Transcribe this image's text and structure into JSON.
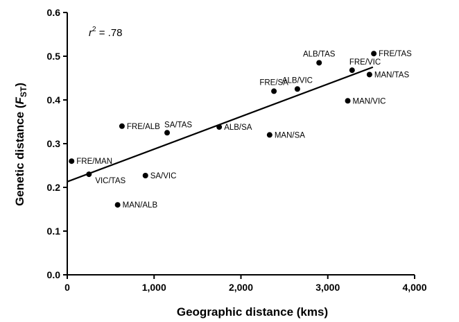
{
  "chart_data": {
    "type": "scatter",
    "title": "",
    "xlabel": "Geographic distance (kms)",
    "ylabel_main": "Genetic distance (",
    "ylabel_italic": "F",
    "ylabel_sub": "ST",
    "ylabel_close": ")",
    "xlim": [
      0,
      4000
    ],
    "ylim": [
      0,
      0.6
    ],
    "x_ticks": [
      0,
      1000,
      2000,
      3000,
      4000
    ],
    "x_tick_labels": [
      "0",
      "1,000",
      "2,000",
      "3,000",
      "4,000"
    ],
    "y_ticks": [
      0,
      0.1,
      0.2,
      0.3,
      0.4,
      0.5,
      0.6
    ],
    "y_tick_labels": [
      "0.0",
      "0.1",
      "0.2",
      "0.3",
      "0.4",
      "0.5",
      "0.6"
    ],
    "grid": false,
    "annotation": {
      "r": "r",
      "sup": "2",
      "rest": " = .78"
    },
    "points": [
      {
        "label": "FRE/MAN",
        "x": 50,
        "y": 0.26,
        "label_pos": "right"
      },
      {
        "label": "VIC/TAS",
        "x": 250,
        "y": 0.23,
        "label_pos": "below-right"
      },
      {
        "label": "MAN/ALB",
        "x": 580,
        "y": 0.16,
        "label_pos": "right"
      },
      {
        "label": "FRE/ALB",
        "x": 630,
        "y": 0.34,
        "label_pos": "right"
      },
      {
        "label": "SA/VIC",
        "x": 900,
        "y": 0.227,
        "label_pos": "right"
      },
      {
        "label": "SA/TAS",
        "x": 1150,
        "y": 0.325,
        "label_pos": "above-right"
      },
      {
        "label": "ALB/SA",
        "x": 1750,
        "y": 0.338,
        "label_pos": "right"
      },
      {
        "label": "MAN/SA",
        "x": 2330,
        "y": 0.32,
        "label_pos": "right"
      },
      {
        "label": "FRE/SA",
        "x": 2380,
        "y": 0.42,
        "label_pos": "above"
      },
      {
        "label": "ALB/VIC",
        "x": 2650,
        "y": 0.425,
        "label_pos": "above"
      },
      {
        "label": "ALB/TAS",
        "x": 2900,
        "y": 0.485,
        "label_pos": "above"
      },
      {
        "label": "MAN/VIC",
        "x": 3230,
        "y": 0.398,
        "label_pos": "right"
      },
      {
        "label": "FRE/VIC",
        "x": 3280,
        "y": 0.468,
        "label_pos": "above-right"
      },
      {
        "label": "MAN/TAS",
        "x": 3480,
        "y": 0.458,
        "label_pos": "right"
      },
      {
        "label": "FRE/TAS",
        "x": 3530,
        "y": 0.506,
        "label_pos": "right"
      }
    ],
    "regression_line": {
      "x": [
        0,
        3520
      ],
      "y": [
        0.213,
        0.475
      ]
    }
  }
}
